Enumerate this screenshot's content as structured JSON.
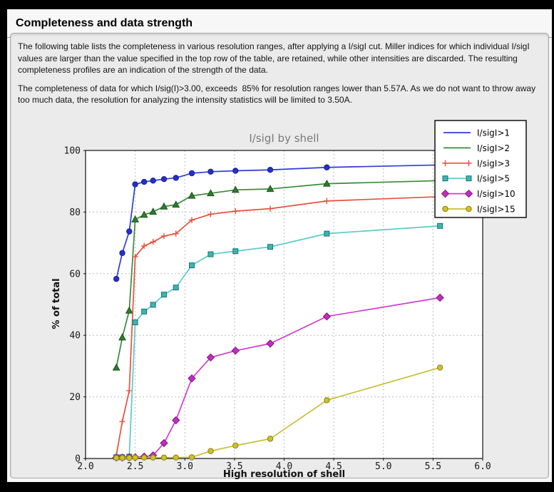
{
  "header": {
    "title": "Completeness and data strength"
  },
  "intro": {
    "para1": "The following table lists the completeness in various resolution ranges, after applying a I/sigI cut. Miller indices for which individual I/sigI values are larger than the value specified in the top row of the table, are retained, while other intensities are discarded. The resulting completeness profiles are an indication of the strength of the data.",
    "para2": "The completeness of data for which I/sig(I)>3.00, exceeds  85% for resolution ranges lower than 5.57A. As we do not want to throw away too much data, the resolution for analyzing the intensity statistics will be limited to 3.50A."
  },
  "chart_data": {
    "type": "line",
    "title": "I/sigI by shell",
    "xlabel": "High resolution of shell",
    "ylabel": "% of total",
    "xlim": [
      2.0,
      6.0
    ],
    "ylim": [
      0,
      100
    ],
    "xticks": [
      2.0,
      2.5,
      3.0,
      3.5,
      4.0,
      4.5,
      5.0,
      5.5,
      6.0
    ],
    "yticks": [
      0,
      20,
      40,
      60,
      80,
      100
    ],
    "grid": true,
    "legend_position": "top-right",
    "plot_bg": "#ffffff",
    "grid_color": "#bdbdbd",
    "frame_color": "#111111",
    "x": [
      2.31,
      2.37,
      2.44,
      2.5,
      2.59,
      2.68,
      2.79,
      2.91,
      3.07,
      3.26,
      3.51,
      3.86,
      4.43,
      5.57
    ],
    "series": [
      {
        "name": "I/sigI>1",
        "marker": "circle",
        "show_marker_in_legend": false,
        "line_color": "#2f3bd8",
        "marker_fill": "#2430c8",
        "marker_edge": "#161f9e",
        "values": [
          58.3,
          66.7,
          73.7,
          89.0,
          89.8,
          90.2,
          90.7,
          91.1,
          92.6,
          93.1,
          93.4,
          93.7,
          94.5,
          95.3
        ]
      },
      {
        "name": "I/sigI>2",
        "marker": "triangle",
        "show_marker_in_legend": false,
        "line_color": "#3a8a3a",
        "marker_fill": "#2e7b2e",
        "marker_edge": "#1c551c",
        "values": [
          29.5,
          39.3,
          48.0,
          77.6,
          79.1,
          80.1,
          81.8,
          82.4,
          85.3,
          86.1,
          87.2,
          87.5,
          89.2,
          90.2
        ]
      },
      {
        "name": "I/sigI>3",
        "marker": "plus",
        "show_marker_in_legend": true,
        "line_color": "#e6503c",
        "marker_fill": "none",
        "marker_edge": "#e6503c",
        "values": [
          1.0,
          12.0,
          22.0,
          65.5,
          69.0,
          70.3,
          72.2,
          73.0,
          77.4,
          79.3,
          80.3,
          81.1,
          83.6,
          85.0
        ]
      },
      {
        "name": "I/sigI>5",
        "marker": "square",
        "show_marker_in_legend": true,
        "line_color": "#5cc9c9",
        "marker_fill": "#41b2b2",
        "marker_edge": "#157575",
        "values": [
          0.4,
          0.4,
          0.6,
          44.2,
          47.7,
          49.9,
          53.2,
          55.5,
          62.7,
          66.3,
          67.3,
          68.7,
          73.0,
          75.5
        ]
      },
      {
        "name": "I/sigI>10",
        "marker": "diamond",
        "show_marker_in_legend": true,
        "line_color": "#cf3ecf",
        "marker_fill": "#c02ec0",
        "marker_edge": "#801680",
        "values": [
          0.3,
          0.3,
          0.4,
          0.4,
          0.6,
          1.0,
          5.0,
          12.4,
          26.0,
          32.8,
          35.0,
          37.3,
          46.1,
          52.2
        ]
      },
      {
        "name": "I/sigI>15",
        "marker": "circle",
        "show_marker_in_legend": true,
        "line_color": "#c9be32",
        "marker_fill": "#cfc027",
        "marker_edge": "#8c8010",
        "values": [
          0.2,
          0.2,
          0.2,
          0.3,
          0.3,
          0.3,
          0.3,
          0.3,
          0.4,
          2.4,
          4.2,
          6.4,
          18.9,
          29.5
        ]
      }
    ]
  }
}
